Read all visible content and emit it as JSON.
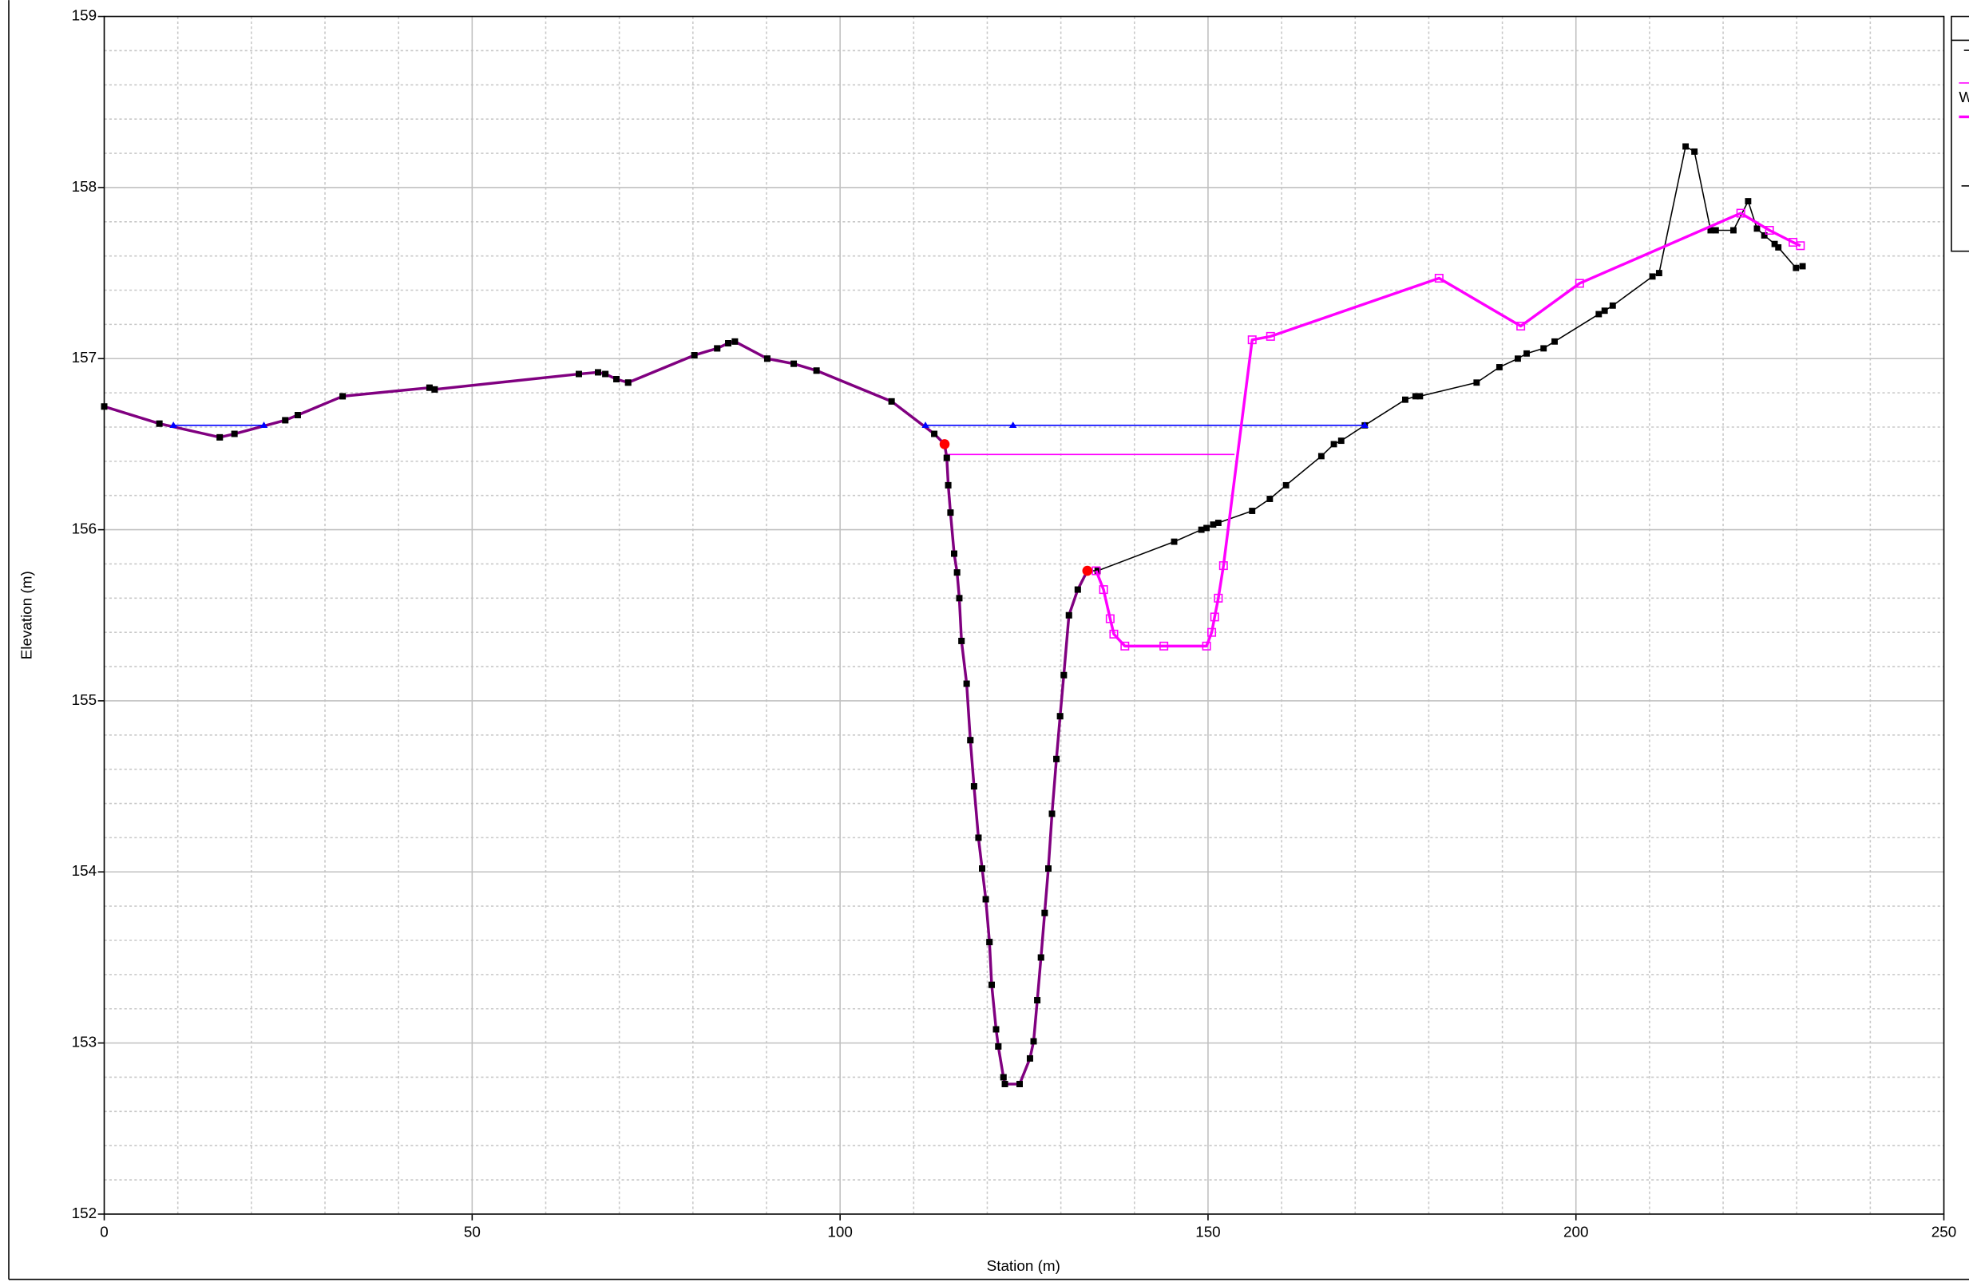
{
  "chart_data": {
    "type": "line",
    "x_label": "Station (m)",
    "y_label": "Elevation (m)",
    "xlim": [
      0,
      250
    ],
    "xticks": [
      0,
      50,
      100,
      150,
      200,
      250
    ],
    "ylim": [
      152,
      159
    ],
    "yticks": [
      152,
      153,
      154,
      155,
      156,
      157,
      158,
      159
    ],
    "minor_xticks": [
      10,
      20,
      30,
      40,
      60,
      70,
      80,
      90,
      110,
      120,
      130,
      140,
      160,
      170,
      180,
      190,
      210,
      220,
      230,
      240
    ],
    "minor_yticks": [
      152.2,
      152.4,
      152.6,
      152.8,
      153.2,
      153.4,
      153.6,
      153.8,
      154.2,
      154.4,
      154.6,
      154.8,
      155.2,
      155.4,
      155.6,
      155.8,
      156.2,
      156.4,
      156.6,
      156.8,
      157.2,
      157.4,
      157.6,
      157.8,
      158.2,
      158.4,
      158.6,
      158.8
    ],
    "grid": true,
    "legend_texts": [
      "W"
    ],
    "series": [
      {
        "color": "#ff00ff",
        "width": 1,
        "marker": "none",
        "x": [
          114.2,
          153.6
        ],
        "values": [
          156.44,
          156.44
        ]
      },
      {
        "color": "#000000",
        "width": 1,
        "marker": "square",
        "x": [
          0,
          7.5,
          15.7,
          17.7,
          24.6,
          26.3,
          32.4,
          44.2,
          44.9,
          64.5,
          67.1,
          68.1,
          69.6,
          71.2,
          80.2,
          83.3,
          84.8,
          85.7,
          90.1,
          93.7,
          96.8,
          107.0,
          112.8,
          114.2,
          114.5,
          114.7,
          115.0,
          115.5,
          115.9,
          116.2,
          116.5,
          117.2,
          117.7,
          118.2,
          118.8,
          119.3,
          119.8,
          120.3,
          120.6,
          121.2,
          121.5,
          122.2,
          122.4,
          124.4,
          125.8,
          126.3,
          126.8,
          127.3,
          127.8,
          128.3,
          128.8,
          129.4,
          129.9,
          130.4,
          131.1,
          132.3,
          133.6,
          135.0,
          145.4,
          149.1,
          149.8,
          150.7,
          151.4,
          156.0,
          158.4,
          160.6,
          165.4,
          167.1,
          168.1,
          171.3,
          176.8,
          178.2,
          178.8,
          186.5,
          189.6,
          192.1,
          193.3,
          195.6,
          197.1,
          203.1,
          203.9,
          205.0,
          210.4,
          211.3,
          214.9,
          216.1,
          218.3,
          219.0,
          221.4,
          223.4,
          224.6,
          225.6,
          227.0,
          227.5,
          229.9,
          230.8
        ],
        "values": [
          156.72,
          156.62,
          156.54,
          156.56,
          156.64,
          156.67,
          156.78,
          156.83,
          156.82,
          156.91,
          156.92,
          156.91,
          156.88,
          156.86,
          157.02,
          157.06,
          157.09,
          157.1,
          157.0,
          156.97,
          156.93,
          156.75,
          156.56,
          156.5,
          156.42,
          156.26,
          156.1,
          155.86,
          155.75,
          155.6,
          155.35,
          155.1,
          154.77,
          154.5,
          154.2,
          154.02,
          153.84,
          153.59,
          153.34,
          153.08,
          152.98,
          152.8,
          152.76,
          152.76,
          152.91,
          153.01,
          153.25,
          153.5,
          153.76,
          154.02,
          154.34,
          154.66,
          154.91,
          155.15,
          155.5,
          155.65,
          155.76,
          155.76,
          155.93,
          156.0,
          156.01,
          156.03,
          156.04,
          156.11,
          156.18,
          156.26,
          156.43,
          156.5,
          156.52,
          156.61,
          156.76,
          156.78,
          156.78,
          156.86,
          156.95,
          157.0,
          157.03,
          157.06,
          157.1,
          157.26,
          157.28,
          157.31,
          157.48,
          157.5,
          158.24,
          158.21,
          157.75,
          157.75,
          157.75,
          157.92,
          157.76,
          157.72,
          157.67,
          157.65,
          157.53,
          157.54
        ]
      },
      {
        "color": "#800080",
        "width": 2.2,
        "marker": "square",
        "x": [
          0,
          7.5,
          15.7,
          17.7,
          24.6,
          26.3,
          32.4,
          44.2,
          44.9,
          64.5,
          67.1,
          68.1,
          69.6,
          71.2,
          80.2,
          83.3,
          84.8,
          85.7,
          90.1,
          93.7,
          96.8,
          107.0,
          112.8,
          114.2,
          114.5,
          114.7,
          115.0,
          115.5,
          115.9,
          116.2,
          116.5,
          117.2,
          117.7,
          118.2,
          118.8,
          119.3,
          119.8,
          120.3,
          120.6,
          121.2,
          121.5,
          122.2,
          122.4,
          124.4,
          125.8,
          126.3,
          126.8,
          127.3,
          127.8,
          128.3,
          128.8,
          129.4,
          129.9,
          130.4,
          131.1,
          132.3,
          133.6
        ],
        "values": [
          156.72,
          156.62,
          156.54,
          156.56,
          156.64,
          156.67,
          156.78,
          156.83,
          156.82,
          156.91,
          156.92,
          156.91,
          156.88,
          156.86,
          157.02,
          157.06,
          157.09,
          157.1,
          157.0,
          156.97,
          156.93,
          156.75,
          156.56,
          156.5,
          156.42,
          156.26,
          156.1,
          155.86,
          155.75,
          155.6,
          155.35,
          155.1,
          154.77,
          154.5,
          154.2,
          154.02,
          153.84,
          153.59,
          153.34,
          153.08,
          152.98,
          152.8,
          152.76,
          152.76,
          152.91,
          153.01,
          153.25,
          153.5,
          153.76,
          154.02,
          154.34,
          154.66,
          154.91,
          155.15,
          155.5,
          155.65,
          155.76
        ]
      },
      {
        "color": "#0000ff",
        "width": 1,
        "marker": "triangle",
        "x": [
          9.4,
          21.7,
          null,
          111.6,
          123.5,
          171.3
        ],
        "values": [
          156.61,
          156.61,
          null,
          156.61,
          156.61,
          156.61
        ]
      },
      {
        "color": "#ff00ff",
        "width": 2.2,
        "marker": "hollow-square",
        "x": [
          134.8,
          135.8,
          136.7,
          137.2,
          138.7,
          144.0,
          149.8,
          150.5,
          150.9,
          151.4,
          152.1,
          156.0,
          158.5,
          181.4,
          192.5,
          200.5,
          222.4,
          226.3,
          229.5,
          230.5
        ],
        "values": [
          155.76,
          155.65,
          155.48,
          155.39,
          155.32,
          155.32,
          155.32,
          155.4,
          155.49,
          155.6,
          155.79,
          157.11,
          157.13,
          157.47,
          157.19,
          157.44,
          157.85,
          157.75,
          157.68,
          157.66
        ]
      },
      {
        "color": "#ff0000",
        "width": 0,
        "marker": "circle",
        "x": [
          114.2,
          133.6
        ],
        "values": [
          156.5,
          155.76
        ]
      }
    ]
  }
}
